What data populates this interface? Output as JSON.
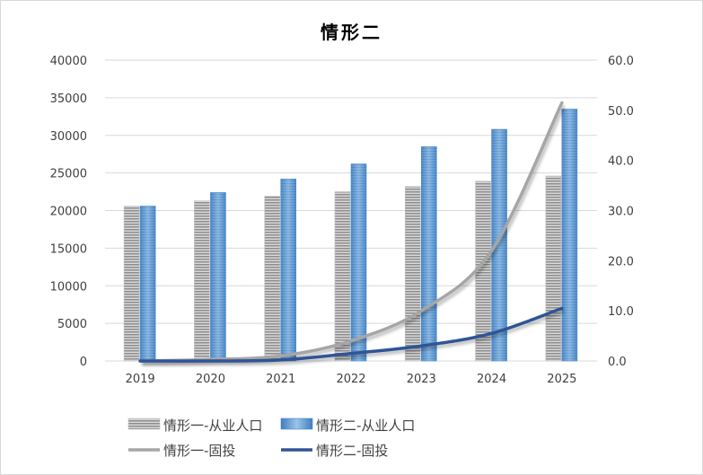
{
  "chart_data": {
    "type": "bar",
    "title": "情形二",
    "categories": [
      "2019",
      "2020",
      "2021",
      "2022",
      "2023",
      "2024",
      "2025"
    ],
    "y_left": {
      "min": 0,
      "max": 40000,
      "step": 5000,
      "ticks": [
        "0",
        "5000",
        "10000",
        "15000",
        "20000",
        "25000",
        "30000",
        "35000",
        "40000"
      ]
    },
    "y_right": {
      "min": 0,
      "max": 60,
      "step": 10,
      "ticks": [
        "0.0",
        "10.0",
        "20.0",
        "30.0",
        "40.0",
        "50.0",
        "60.0"
      ]
    },
    "grid": true,
    "legend_position": "bottom",
    "series": [
      {
        "name": "情形一-从业人口",
        "kind": "bar",
        "axis": "left",
        "color": "#a6a6a6",
        "values": [
          20600,
          21300,
          21900,
          22500,
          23200,
          23900,
          24600
        ]
      },
      {
        "name": "情形二-从业人口",
        "kind": "bar",
        "axis": "left",
        "color": "#5b9bd5",
        "values": [
          20600,
          22400,
          24200,
          26200,
          28500,
          30800,
          33500
        ]
      },
      {
        "name": "情形一-固投",
        "kind": "line",
        "axis": "right",
        "color": "#a6a6a6",
        "values": [
          0,
          0.3,
          1.0,
          4.0,
          10.0,
          22.0,
          51.5
        ]
      },
      {
        "name": "情形二-固投",
        "kind": "line",
        "axis": "right",
        "color": "#2f5597",
        "values": [
          0,
          0,
          0.2,
          1.5,
          3.0,
          5.5,
          10.5
        ]
      }
    ]
  }
}
